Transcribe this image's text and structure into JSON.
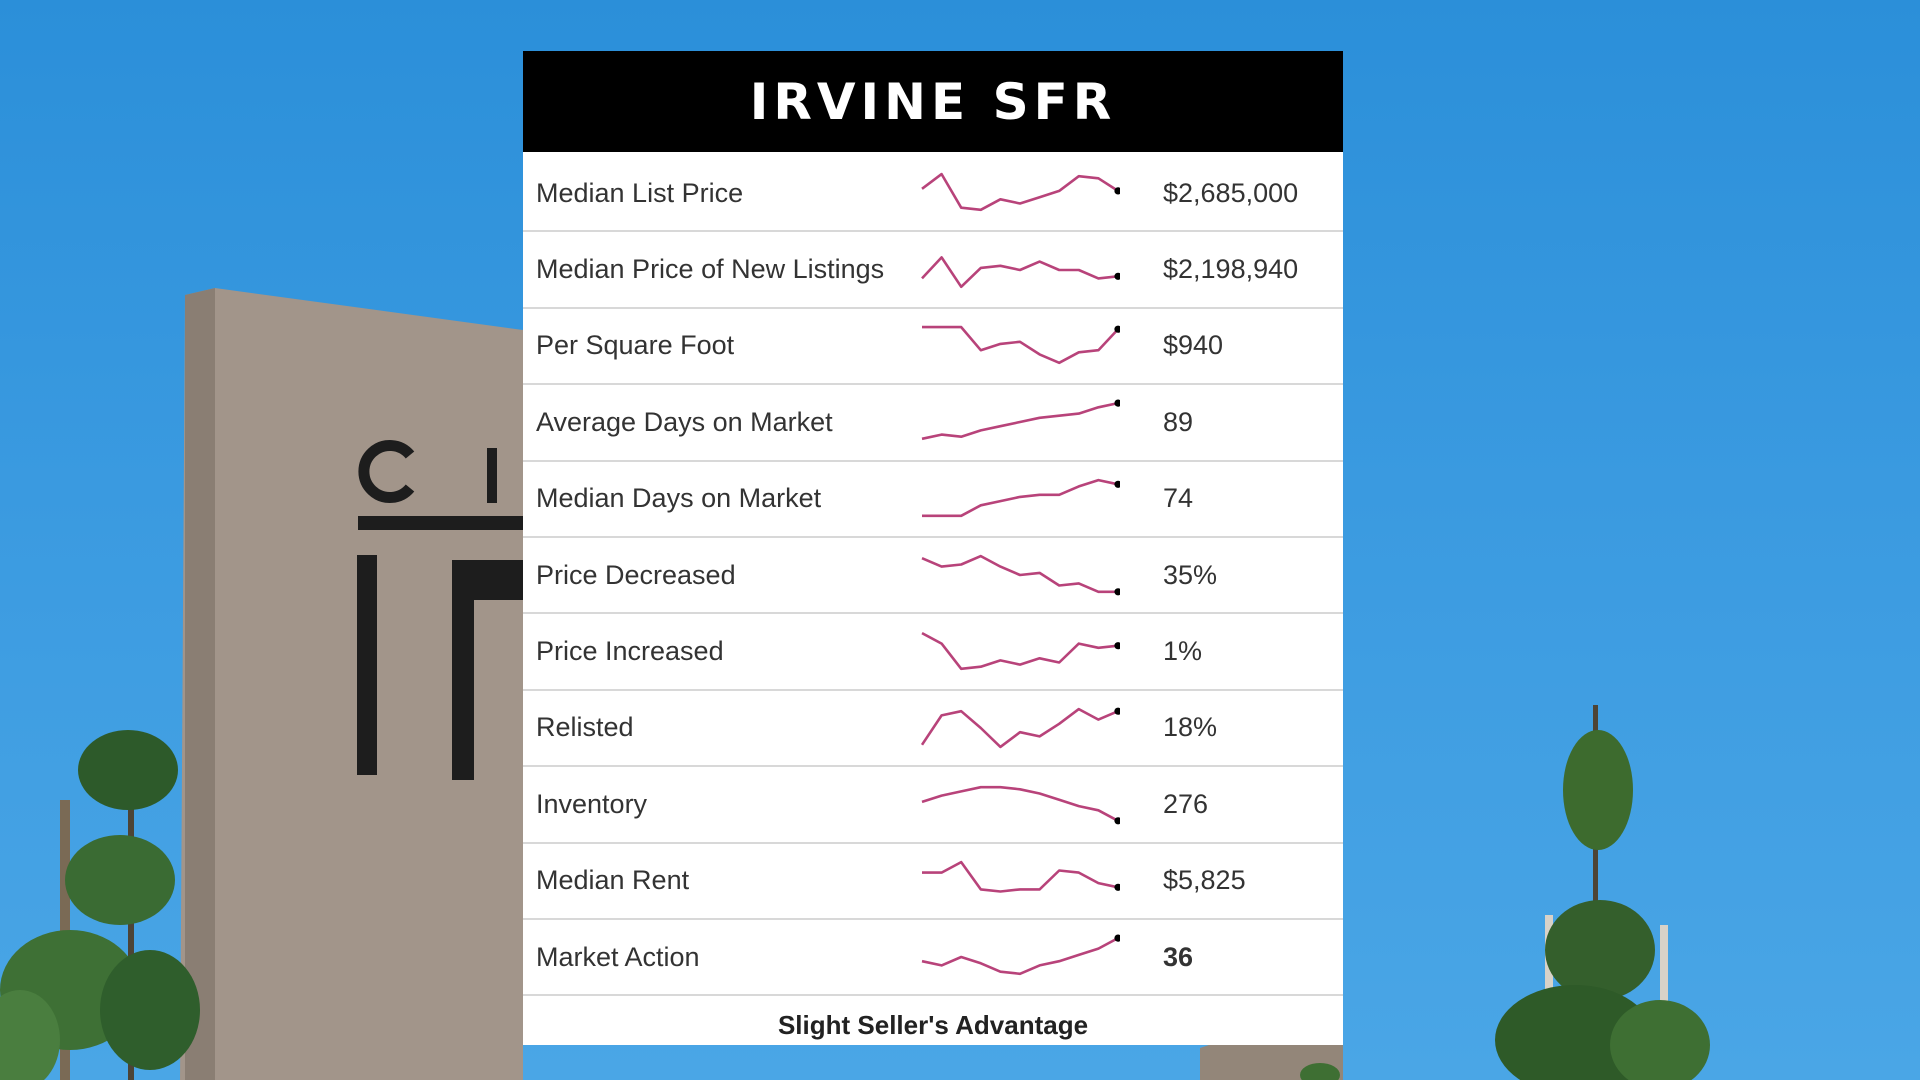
{
  "card": {
    "title": "IRVINE SFR",
    "footer": "Slight Seller's Advantage"
  },
  "colors": {
    "spark_line": "#b8437a",
    "spark_dot": "#000000",
    "header_bg": "#000000"
  },
  "rows": [
    {
      "label": "Median List Price",
      "value": "$2,685,000",
      "spark": [
        0.6,
        0.95,
        0.15,
        0.1,
        0.35,
        0.25,
        0.4,
        0.55,
        0.9,
        0.85,
        0.55
      ]
    },
    {
      "label": "Median Price of New Listings",
      "value": "$2,198,940",
      "spark": [
        0.3,
        0.8,
        0.1,
        0.55,
        0.6,
        0.5,
        0.7,
        0.5,
        0.5,
        0.3,
        0.35
      ]
    },
    {
      "label": "Per Square Foot",
      "value": "$940",
      "spark": [
        0.95,
        0.95,
        0.95,
        0.4,
        0.55,
        0.6,
        0.3,
        0.1,
        0.35,
        0.4,
        0.9
      ]
    },
    {
      "label": "Average Days on Market",
      "value": "89",
      "spark": [
        0.1,
        0.2,
        0.15,
        0.3,
        0.4,
        0.5,
        0.6,
        0.65,
        0.7,
        0.85,
        0.95
      ]
    },
    {
      "label": "Median Days on Market",
      "value": "74",
      "spark": [
        0.1,
        0.1,
        0.1,
        0.35,
        0.45,
        0.55,
        0.6,
        0.6,
        0.8,
        0.95,
        0.85
      ]
    },
    {
      "label": "Price Decreased",
      "value": "35%",
      "spark": [
        0.9,
        0.7,
        0.75,
        0.95,
        0.7,
        0.5,
        0.55,
        0.25,
        0.3,
        0.1,
        0.1
      ]
    },
    {
      "label": "Price Increased",
      "value": "1%",
      "spark": [
        0.95,
        0.7,
        0.1,
        0.15,
        0.3,
        0.2,
        0.35,
        0.25,
        0.7,
        0.6,
        0.65
      ]
    },
    {
      "label": "Relisted",
      "value": "18%",
      "spark": [
        0.1,
        0.8,
        0.9,
        0.5,
        0.05,
        0.4,
        0.3,
        0.6,
        0.95,
        0.7,
        0.9
      ]
    },
    {
      "label": "Inventory",
      "value": "276",
      "spark": [
        0.55,
        0.7,
        0.8,
        0.9,
        0.9,
        0.85,
        0.75,
        0.6,
        0.45,
        0.35,
        0.1
      ]
    },
    {
      "label": "Median Rent",
      "value": "$5,825",
      "spark": [
        0.7,
        0.7,
        0.95,
        0.3,
        0.25,
        0.3,
        0.3,
        0.75,
        0.7,
        0.45,
        0.35
      ]
    },
    {
      "label": "Market Action",
      "value": "36",
      "spark": [
        0.4,
        0.3,
        0.5,
        0.35,
        0.15,
        0.1,
        0.3,
        0.4,
        0.55,
        0.7,
        0.95
      ],
      "bold": true
    }
  ]
}
